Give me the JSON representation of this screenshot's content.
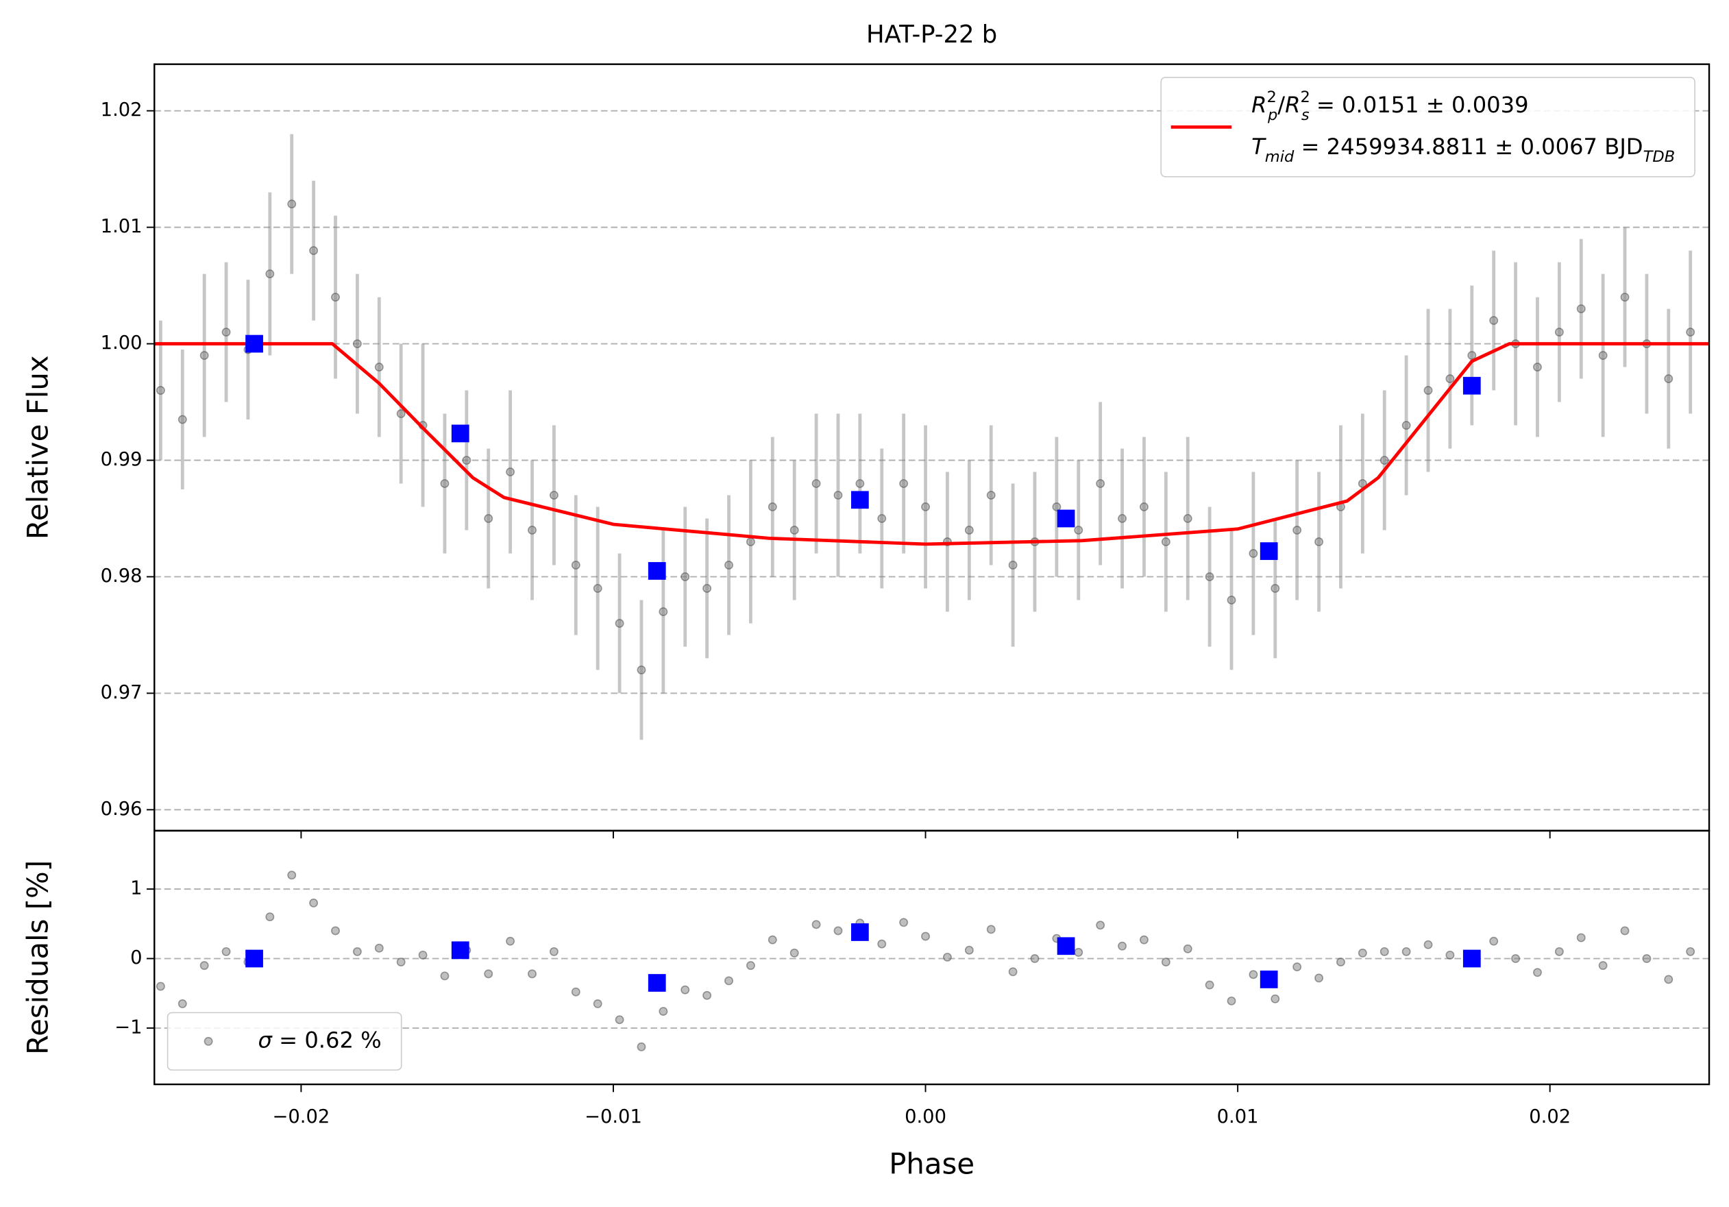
{
  "chart_data": [
    {
      "type": "line",
      "title": "HAT-P-22 b",
      "ylabel": "Relative Flux",
      "xlim": [
        -0.0247,
        0.0251
      ],
      "ylim": [
        0.9582,
        1.024
      ],
      "yticks": [
        0.96,
        0.97,
        0.98,
        0.99,
        {
          "value": 1.0,
          "label": "1.00"
        },
        1.01,
        1.02
      ],
      "grid": true,
      "legend": "upper right",
      "series": [
        {
          "kind": "line",
          "color": "#ff0000",
          "label_lines": [
            [
              {
                "text": "R",
                "italic": true
              },
              {
                "text": "2",
                "sup": true
              },
              {
                "text": "p",
                "sub": true,
                "italic": true,
                "back": true
              },
              {
                "text": "/"
              },
              {
                "text": "R",
                "italic": true
              },
              {
                "text": "2",
                "sup": true
              },
              {
                "text": "s",
                "sub": true,
                "italic": true,
                "back": true
              },
              {
                "text": " = 0.0151 ± 0.0039"
              }
            ],
            [
              {
                "text": "T",
                "italic": true
              },
              {
                "text": "mid",
                "sub": true,
                "italic": true
              },
              {
                "text": " = 2459934.8811 ± 0.0067 BJD"
              },
              {
                "text": "TDB",
                "sub": true,
                "italic": true
              }
            ]
          ],
          "x": [
            -0.0247,
            -0.019,
            -0.0175,
            -0.016,
            -0.0145,
            -0.0135,
            -0.01,
            -0.005,
            0,
            0.005,
            0.01,
            0.0135,
            0.0145,
            0.016,
            0.0175,
            0.0187,
            0.0251
          ],
          "values": [
            1.0,
            1.0,
            0.9966,
            0.9925,
            0.9885,
            0.9868,
            0.9845,
            0.9833,
            0.9828,
            0.9831,
            0.9841,
            0.9865,
            0.9885,
            0.9935,
            0.9985,
            1.0,
            1.0
          ]
        },
        {
          "kind": "errorbar",
          "color": "#808080",
          "x": [
            -0.0245,
            -0.0238,
            -0.0231,
            -0.0224,
            -0.0217,
            -0.021,
            -0.0203,
            -0.0196,
            -0.0189,
            -0.0182,
            -0.0175,
            -0.0168,
            -0.0161,
            -0.0154,
            -0.0147,
            -0.014,
            -0.0133,
            -0.0126,
            -0.0119,
            -0.0112,
            -0.0105,
            -0.0098,
            -0.0091,
            -0.0084,
            -0.0077,
            -0.007,
            -0.0063,
            -0.0056,
            -0.0049,
            -0.0042,
            -0.0035,
            -0.0028,
            -0.0021,
            -0.0014,
            -0.0007,
            0,
            0.0007,
            0.0014,
            0.0021,
            0.0028,
            0.0035,
            0.0042,
            0.0049,
            0.0056,
            0.0063,
            0.007,
            0.0077,
            0.0084,
            0.0091,
            0.0098,
            0.0105,
            0.0112,
            0.0119,
            0.0126,
            0.0133,
            0.014,
            0.0147,
            0.0154,
            0.0161,
            0.0168,
            0.0175,
            0.0182,
            0.0189,
            0.0196,
            0.0203,
            0.021,
            0.0217,
            0.0224,
            0.0231,
            0.0238,
            0.0245
          ],
          "values": [
            0.996,
            0.9935,
            0.999,
            1.001,
            0.9995,
            1.006,
            1.012,
            1.008,
            1.004,
            1.0,
            0.998,
            0.994,
            0.993,
            0.988,
            0.99,
            0.985,
            0.989,
            0.984,
            0.987,
            0.981,
            0.979,
            0.976,
            0.972,
            0.977,
            0.98,
            0.979,
            0.981,
            0.983,
            0.986,
            0.984,
            0.988,
            0.987,
            0.988,
            0.985,
            0.988,
            0.986,
            0.983,
            0.984,
            0.987,
            0.981,
            0.983,
            0.986,
            0.984,
            0.988,
            0.985,
            0.986,
            0.983,
            0.985,
            0.98,
            0.978,
            0.982,
            0.979,
            0.984,
            0.983,
            0.986,
            0.988,
            0.99,
            0.993,
            0.996,
            0.997,
            0.999,
            1.002,
            1.0,
            0.998,
            1.001,
            1.003,
            0.999,
            1.004,
            1.0,
            0.997,
            1.001
          ],
          "errors": [
            0.006,
            0.006,
            0.007,
            0.006,
            0.006,
            0.007,
            0.006,
            0.006,
            0.007,
            0.006,
            0.006,
            0.006,
            0.007,
            0.006,
            0.006,
            0.006,
            0.007,
            0.006,
            0.006,
            0.006,
            0.007,
            0.006,
            0.006,
            0.007,
            0.006,
            0.006,
            0.006,
            0.007,
            0.006,
            0.006,
            0.006,
            0.007,
            0.006,
            0.006,
            0.006,
            0.007,
            0.006,
            0.006,
            0.006,
            0.007,
            0.006,
            0.006,
            0.006,
            0.007,
            0.006,
            0.006,
            0.006,
            0.007,
            0.006,
            0.006,
            0.007,
            0.006,
            0.006,
            0.006,
            0.007,
            0.006,
            0.006,
            0.006,
            0.007,
            0.006,
            0.006,
            0.006,
            0.007,
            0.006,
            0.006,
            0.006,
            0.007,
            0.006,
            0.006,
            0.006,
            0.007
          ]
        },
        {
          "kind": "square",
          "color": "#0000ff",
          "x": [
            -0.0215,
            -0.0149,
            -0.0086,
            -0.0021,
            0.0045,
            0.011,
            0.0175
          ],
          "values": [
            1.0,
            0.9923,
            0.9805,
            0.9866,
            0.985,
            0.9822,
            0.9964
          ]
        }
      ]
    },
    {
      "type": "scatter",
      "xlabel": "Phase",
      "ylabel": "Residuals [%]",
      "xlim": [
        -0.0247,
        0.0251
      ],
      "ylim": [
        -1.81,
        1.84
      ],
      "xticks": [
        {
          "value": -0.02,
          "label": "−0.02"
        },
        {
          "value": -0.01,
          "label": "−0.01"
        },
        {
          "value": 0,
          "label": "0.00"
        },
        0.01,
        0.02
      ],
      "yticks": [
        {
          "value": -1,
          "label": "−1"
        },
        0,
        1
      ],
      "grid": true,
      "legend": "lower left",
      "series": [
        {
          "kind": "point",
          "color": "#808080",
          "label_lines": [
            [
              {
                "text": "σ",
                "italic": true
              },
              {
                "text": " = 0.62 %"
              }
            ]
          ],
          "x": [
            -0.0245,
            -0.0238,
            -0.0231,
            -0.0224,
            -0.0217,
            -0.021,
            -0.0203,
            -0.0196,
            -0.0189,
            -0.0182,
            -0.0175,
            -0.0168,
            -0.0161,
            -0.0154,
            -0.0147,
            -0.014,
            -0.0133,
            -0.0126,
            -0.0119,
            -0.0112,
            -0.0105,
            -0.0098,
            -0.0091,
            -0.0084,
            -0.0077,
            -0.007,
            -0.0063,
            -0.0056,
            -0.0049,
            -0.0042,
            -0.0035,
            -0.0028,
            -0.0021,
            -0.0014,
            -0.0007,
            0,
            0.0007,
            0.0014,
            0.0021,
            0.0028,
            0.0035,
            0.0042,
            0.0049,
            0.0056,
            0.0063,
            0.007,
            0.0077,
            0.0084,
            0.0091,
            0.0098,
            0.0105,
            0.0112,
            0.0119,
            0.0126,
            0.0133,
            0.014,
            0.0147,
            0.0154,
            0.0161,
            0.0168,
            0.0175,
            0.0182,
            0.0189,
            0.0196,
            0.0203,
            0.021,
            0.0217,
            0.0224,
            0.0231,
            0.0238,
            0.0245
          ],
          "values": [
            -0.4,
            -0.65,
            -0.1,
            0.1,
            -0.05,
            0.6,
            1.2,
            0.8,
            0.4,
            0.1,
            0.15,
            -0.05,
            0.05,
            -0.25,
            0.12,
            -0.22,
            0.25,
            -0.22,
            0.1,
            -0.48,
            -0.65,
            -0.88,
            -1.27,
            -0.76,
            -0.45,
            -0.53,
            -0.32,
            -0.1,
            0.27,
            0.08,
            0.49,
            0.4,
            0.51,
            0.21,
            0.52,
            0.32,
            0.02,
            0.12,
            0.42,
            -0.19,
            0.0,
            0.29,
            0.09,
            0.48,
            0.18,
            0.27,
            -0.05,
            0.14,
            -0.38,
            -0.61,
            -0.23,
            -0.58,
            -0.12,
            -0.28,
            -0.05,
            0.08,
            0.1,
            0.1,
            0.2,
            0.05,
            0.05,
            0.25,
            0.0,
            -0.2,
            0.1,
            0.3,
            -0.1,
            0.4,
            0.0,
            -0.3,
            0.1
          ]
        },
        {
          "kind": "square",
          "color": "#0000ff",
          "x": [
            -0.0215,
            -0.0149,
            -0.0086,
            -0.0021,
            0.0045,
            0.011,
            0.0175
          ],
          "values": [
            0.0,
            0.12,
            -0.35,
            0.38,
            0.18,
            -0.3,
            0.0
          ]
        }
      ]
    }
  ]
}
